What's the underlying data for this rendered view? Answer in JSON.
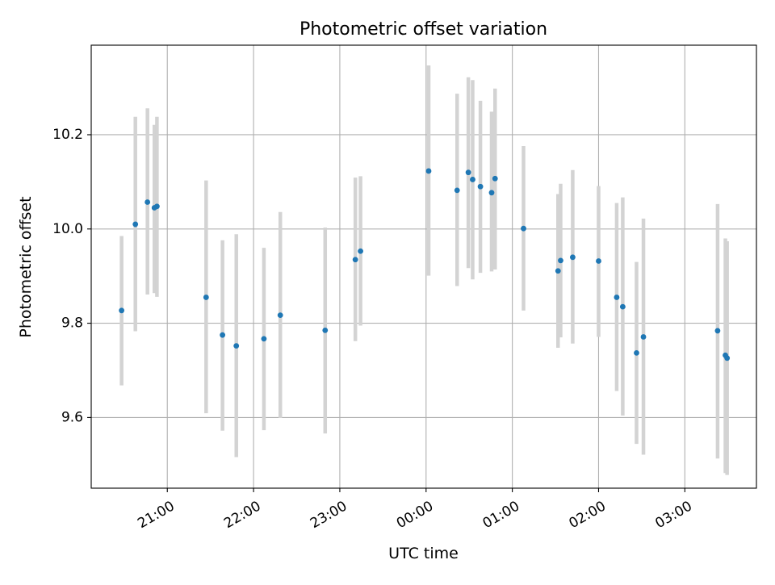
{
  "chart_data": {
    "type": "scatter",
    "title": "Photometric offset variation",
    "xlabel": "UTC time",
    "ylabel": "Photometric offset",
    "x_unit": "UTC hours, day 1 starting at 20:00; values above 24 fall after midnight",
    "xlim": [
      20.118,
      27.83
    ],
    "ylim": [
      9.45,
      10.39
    ],
    "grid": true,
    "x_ticks": [
      {
        "value": 21,
        "label": "21:00"
      },
      {
        "value": 22,
        "label": "22:00"
      },
      {
        "value": 23,
        "label": "23:00"
      },
      {
        "value": 24,
        "label": "00:00"
      },
      {
        "value": 25,
        "label": "01:00"
      },
      {
        "value": 26,
        "label": "02:00"
      },
      {
        "value": 27,
        "label": "03:00"
      }
    ],
    "y_ticks": [
      {
        "value": 9.6,
        "label": "9.6"
      },
      {
        "value": 9.8,
        "label": "9.8"
      },
      {
        "value": 10.0,
        "label": "10.0"
      },
      {
        "value": 10.2,
        "label": "10.2"
      }
    ],
    "series": [
      {
        "color": "#1f77b4",
        "errorbar_color": "#d3d3d3",
        "points": [
          {
            "time": "20:28",
            "x": 20.47,
            "y": 9.827,
            "ylow": 9.668,
            "yhigh": 9.985
          },
          {
            "time": "20:38",
            "x": 20.63,
            "y": 10.01,
            "ylow": 9.783,
            "yhigh": 10.238
          },
          {
            "time": "20:46",
            "x": 20.77,
            "y": 10.057,
            "ylow": 9.861,
            "yhigh": 10.256
          },
          {
            "time": "20:51",
            "x": 20.85,
            "y": 10.045,
            "ylow": 9.864,
            "yhigh": 10.221
          },
          {
            "time": "20:53",
            "x": 20.88,
            "y": 10.048,
            "ylow": 9.856,
            "yhigh": 10.238
          },
          {
            "time": "21:27",
            "x": 21.45,
            "y": 9.855,
            "ylow": 9.609,
            "yhigh": 10.103
          },
          {
            "time": "21:38",
            "x": 21.64,
            "y": 9.775,
            "ylow": 9.572,
            "yhigh": 9.976
          },
          {
            "time": "21:48",
            "x": 21.8,
            "y": 9.752,
            "ylow": 9.516,
            "yhigh": 9.989
          },
          {
            "time": "22:07",
            "x": 22.12,
            "y": 9.767,
            "ylow": 9.573,
            "yhigh": 9.96
          },
          {
            "time": "22:19",
            "x": 22.31,
            "y": 9.817,
            "ylow": 9.599,
            "yhigh": 10.036
          },
          {
            "time": "22:50",
            "x": 22.83,
            "y": 9.785,
            "ylow": 9.566,
            "yhigh": 10.003
          },
          {
            "time": "23:11",
            "x": 23.18,
            "y": 9.935,
            "ylow": 9.762,
            "yhigh": 10.109
          },
          {
            "time": "23:14",
            "x": 23.24,
            "y": 9.953,
            "ylow": 9.795,
            "yhigh": 10.112
          },
          {
            "time": "00:02",
            "x": 24.03,
            "y": 10.123,
            "ylow": 9.901,
            "yhigh": 10.347
          },
          {
            "time": "00:23",
            "x": 24.36,
            "y": 10.082,
            "ylow": 9.879,
            "yhigh": 10.287
          },
          {
            "time": "00:29",
            "x": 24.49,
            "y": 10.12,
            "ylow": 9.917,
            "yhigh": 10.322
          },
          {
            "time": "00:33",
            "x": 24.54,
            "y": 10.105,
            "ylow": 9.893,
            "yhigh": 10.316
          },
          {
            "time": "00:38",
            "x": 24.63,
            "y": 10.09,
            "ylow": 9.907,
            "yhigh": 10.272
          },
          {
            "time": "00:45",
            "x": 24.76,
            "y": 10.077,
            "ylow": 9.91,
            "yhigh": 10.249
          },
          {
            "time": "00:48",
            "x": 24.8,
            "y": 10.107,
            "ylow": 9.914,
            "yhigh": 10.298
          },
          {
            "time": "01:07",
            "x": 25.13,
            "y": 10.001,
            "ylow": 9.827,
            "yhigh": 10.176
          },
          {
            "time": "01:32",
            "x": 25.53,
            "y": 9.911,
            "ylow": 9.748,
            "yhigh": 10.074
          },
          {
            "time": "01:34",
            "x": 25.56,
            "y": 9.933,
            "ylow": 9.77,
            "yhigh": 10.096
          },
          {
            "time": "01:42",
            "x": 25.7,
            "y": 9.94,
            "ylow": 9.757,
            "yhigh": 10.125
          },
          {
            "time": "02:00",
            "x": 26.0,
            "y": 9.932,
            "ylow": 9.771,
            "yhigh": 10.091
          },
          {
            "time": "02:13",
            "x": 26.21,
            "y": 9.855,
            "ylow": 9.656,
            "yhigh": 10.055
          },
          {
            "time": "02:16",
            "x": 26.28,
            "y": 9.835,
            "ylow": 9.604,
            "yhigh": 10.067
          },
          {
            "time": "02:26",
            "x": 26.44,
            "y": 9.737,
            "ylow": 9.544,
            "yhigh": 9.93
          },
          {
            "time": "02:31",
            "x": 26.52,
            "y": 9.771,
            "ylow": 9.521,
            "yhigh": 10.022
          },
          {
            "time": "03:22",
            "x": 27.38,
            "y": 9.784,
            "ylow": 9.513,
            "yhigh": 10.053
          },
          {
            "time": "03:28",
            "x": 27.47,
            "y": 9.732,
            "ylow": 9.482,
            "yhigh": 9.98
          },
          {
            "time": "03:29",
            "x": 27.49,
            "y": 9.726,
            "ylow": 9.478,
            "yhigh": 9.974
          }
        ]
      }
    ]
  }
}
